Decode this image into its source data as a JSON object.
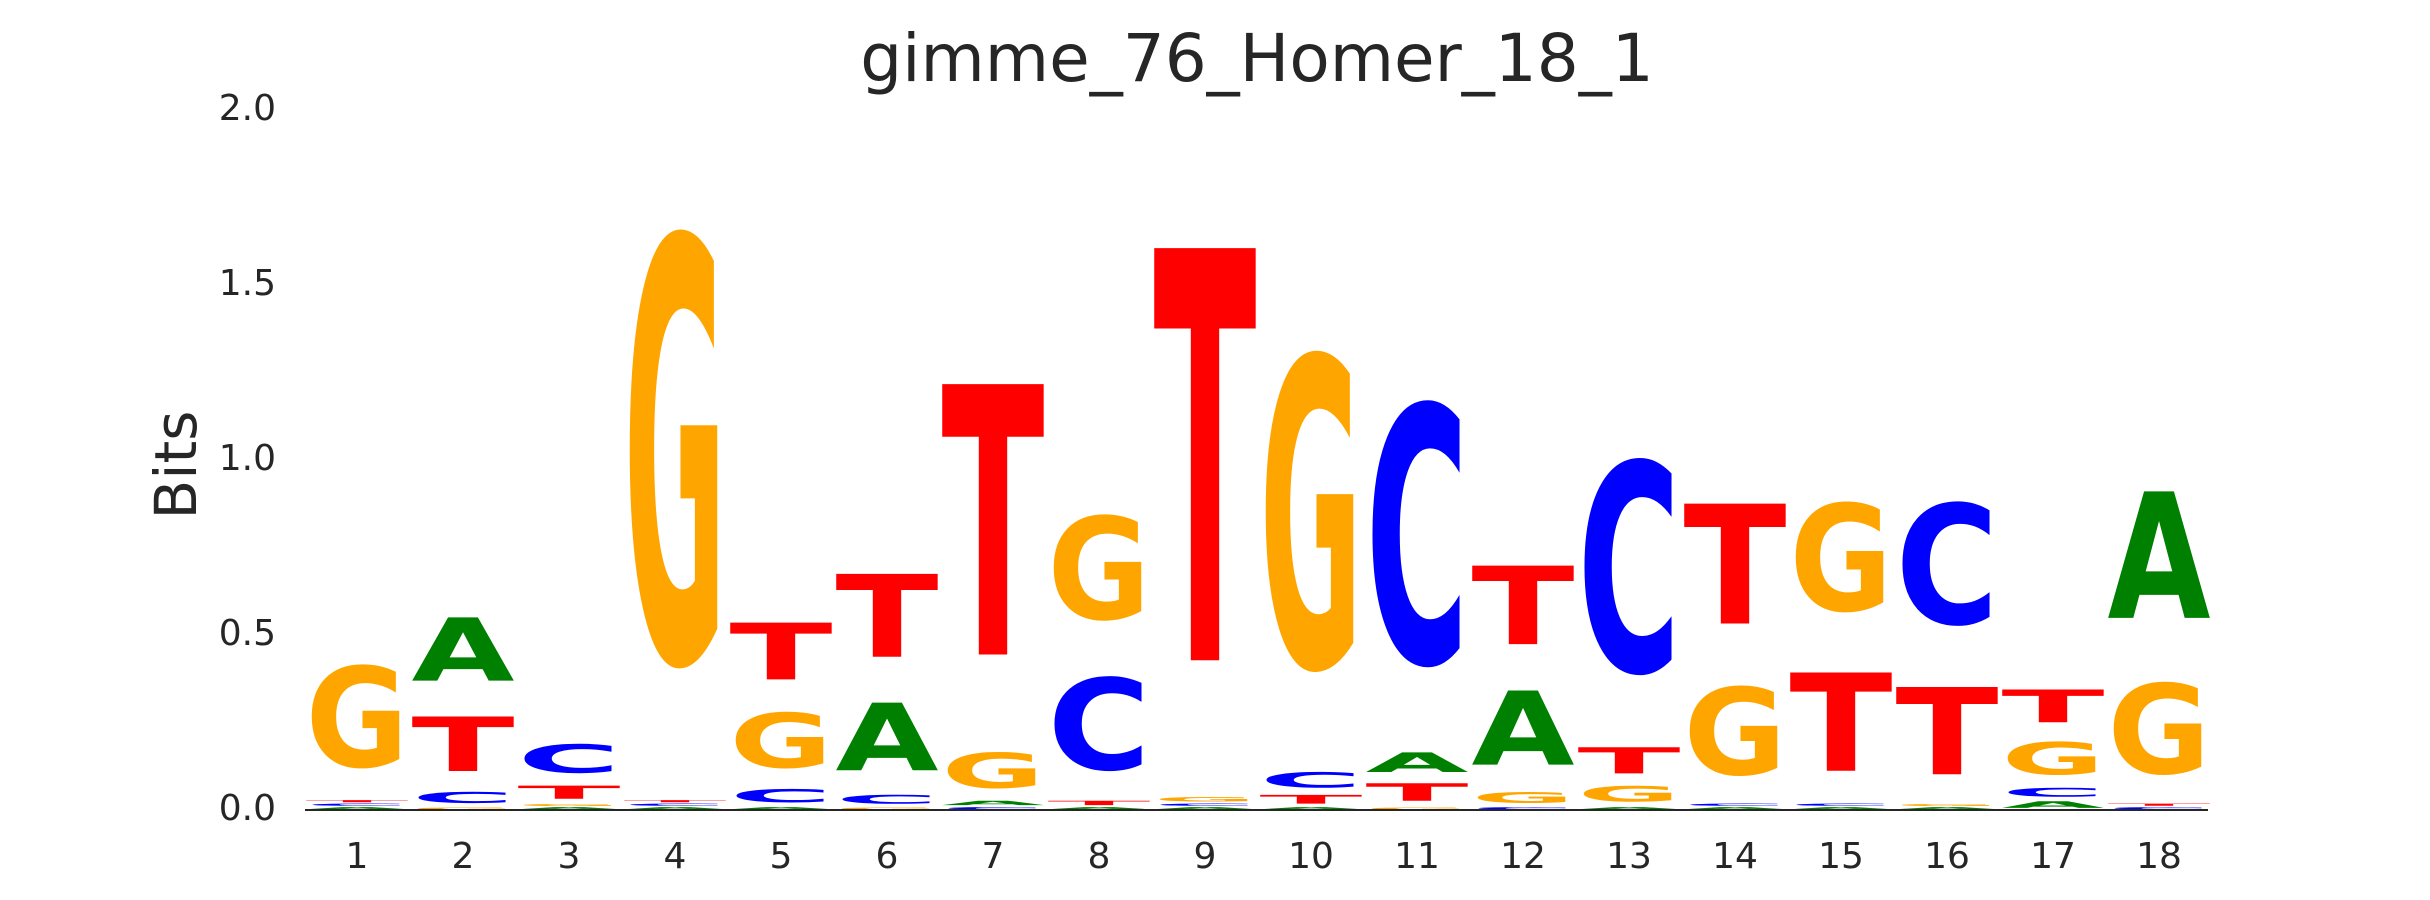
{
  "chart_data": {
    "type": "logo",
    "title": "gimme_76_Homer_18_1",
    "ylabel": "Bits",
    "categories": [
      "1",
      "2",
      "3",
      "4",
      "5",
      "6",
      "7",
      "8",
      "9",
      "10",
      "11",
      "12",
      "13",
      "14",
      "15",
      "16",
      "17",
      "18"
    ],
    "series": [
      {
        "name": "A",
        "color": "#008000",
        "values": [
          0.01,
          0.29,
          0.01,
          0.01,
          0.01,
          0.31,
          0.02,
          0.01,
          0.01,
          0.01,
          0.09,
          0.34,
          0.01,
          0.01,
          0.01,
          0.01,
          0.03,
          0.58
        ]
      },
      {
        "name": "C",
        "color": "#0000ff",
        "values": [
          0.01,
          0.05,
          0.13,
          0.01,
          0.06,
          0.04,
          0.01,
          0.42,
          0.01,
          0.07,
          1.18,
          0.01,
          0.96,
          0.01,
          0.01,
          0.55,
          0.04,
          0.01
        ]
      },
      {
        "name": "G",
        "color": "#ffa500",
        "values": [
          0.46,
          0.01,
          0.01,
          1.94,
          0.25,
          0.01,
          0.16,
          0.47,
          0.02,
          1.42,
          0.01,
          0.05,
          0.07,
          0.4,
          0.49,
          0.01,
          0.15,
          0.41
        ]
      },
      {
        "name": "T",
        "color": "#ff0000",
        "values": [
          0.01,
          0.25,
          0.06,
          0.01,
          0.26,
          0.38,
          1.24,
          0.02,
          1.89,
          0.04,
          0.08,
          0.36,
          0.12,
          0.55,
          0.45,
          0.4,
          0.15,
          0.01
        ]
      }
    ],
    "ylim": [
      0,
      2
    ],
    "yticks": [
      {
        "value": 0,
        "label": "0.0"
      },
      {
        "value": 0.5,
        "label": "0.5"
      },
      {
        "value": 1,
        "label": "1.0"
      },
      {
        "value": 1.5,
        "label": "1.5"
      },
      {
        "value": 2,
        "label": "2.0"
      }
    ]
  }
}
